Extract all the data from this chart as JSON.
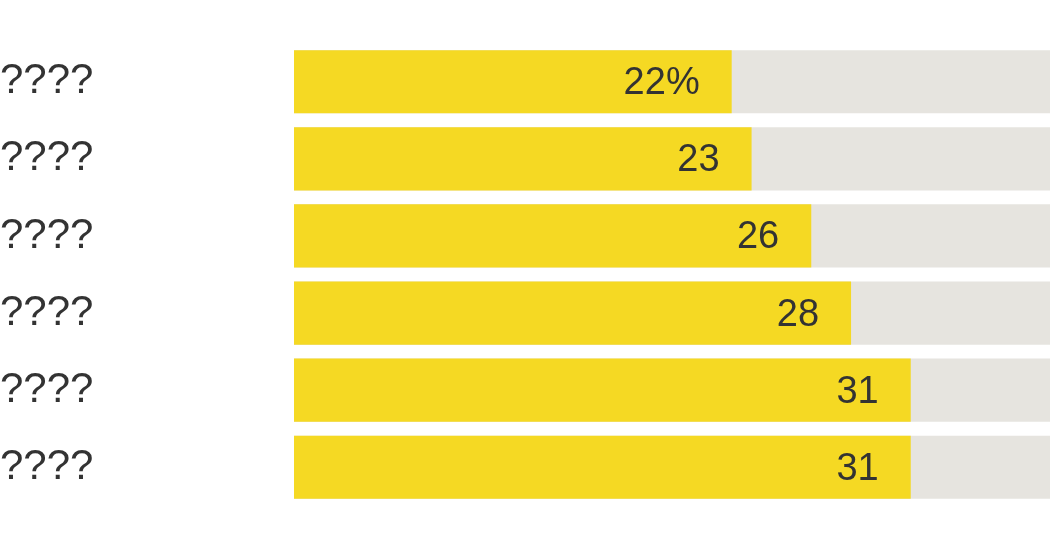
{
  "chart_data": {
    "type": "bar",
    "orientation": "horizontal",
    "categories": [
      "????",
      "????",
      "????",
      "????",
      "????",
      "????"
    ],
    "values": [
      22,
      23,
      26,
      28,
      31,
      31
    ],
    "value_labels": [
      "22%",
      "23",
      "26",
      "28",
      "31",
      "31"
    ],
    "color": "#f5d923",
    "xlim": [
      0,
      38
    ],
    "grid": false,
    "legend": false
  }
}
